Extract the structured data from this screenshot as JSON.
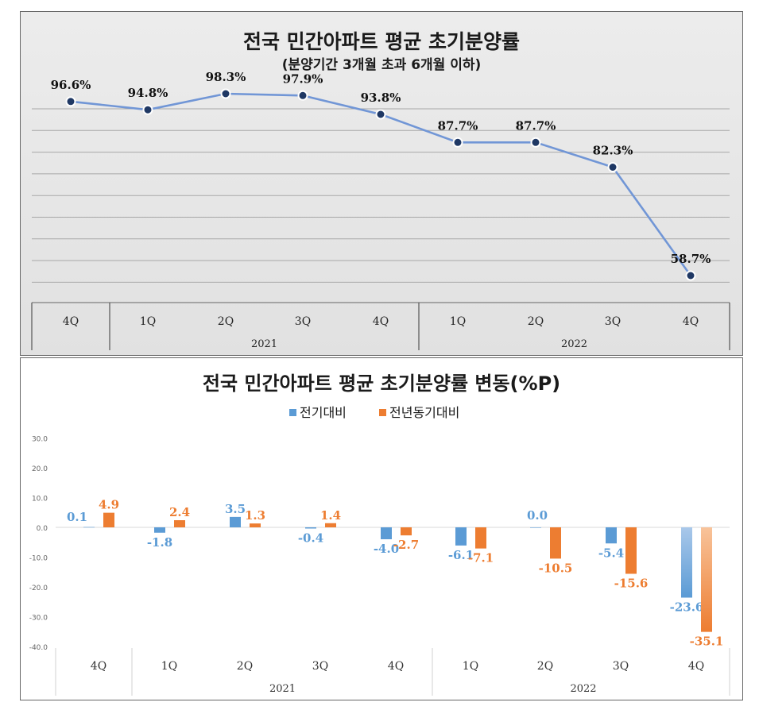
{
  "chart_data": [
    {
      "type": "line",
      "title": "전국 민간아파트 평균 초기분양률",
      "subtitle": "(분양기간 3개월 초과 6개월 이하)",
      "categories": [
        "4Q",
        "1Q",
        "2Q",
        "3Q",
        "4Q",
        "1Q",
        "2Q",
        "3Q",
        "4Q"
      ],
      "year_groups": [
        {
          "label": "2021",
          "start": 1,
          "end": 4
        },
        {
          "label": "2022",
          "start": 5,
          "end": 8
        }
      ],
      "values": [
        96.6,
        94.8,
        98.3,
        97.9,
        93.8,
        87.7,
        87.7,
        82.3,
        58.7
      ],
      "value_labels": [
        "96.6%",
        "94.8%",
        "98.3%",
        "97.9%",
        "93.8%",
        "87.7%",
        "87.7%",
        "82.3%",
        "58.7%"
      ],
      "ylim": [
        54,
        102
      ],
      "colors": {
        "line": "#7196d6",
        "marker": "#1f3864",
        "grid": "#a8a8a8"
      }
    },
    {
      "type": "bar",
      "title": "전국 민간아파트 평균 초기분양률 변동(%P)",
      "categories": [
        "4Q",
        "1Q",
        "2Q",
        "3Q",
        "4Q",
        "1Q",
        "2Q",
        "3Q",
        "4Q"
      ],
      "year_groups": [
        {
          "label": "2021",
          "start": 1,
          "end": 4
        },
        {
          "label": "2022",
          "start": 5,
          "end": 8
        }
      ],
      "series": [
        {
          "name": "전기대비",
          "color": "#5b9bd5",
          "values": [
            0.1,
            -1.8,
            3.5,
            -0.4,
            -4.0,
            -6.1,
            0.0,
            -5.4,
            -23.6
          ],
          "labels": [
            "0.1",
            "-1.8",
            "3.5",
            "-0.4",
            "-4.0",
            "-6.1",
            "0.0",
            "-5.4",
            "-23.6"
          ]
        },
        {
          "name": "전년동기대비",
          "color": "#ed7d31",
          "values": [
            4.9,
            2.4,
            1.3,
            1.4,
            -2.7,
            -7.1,
            -10.5,
            -15.6,
            -35.1
          ],
          "labels": [
            "4.9",
            "2.4",
            "1.3",
            "1.4",
            "-2.7",
            "-7.1",
            "-10.5",
            "-15.6",
            "-35.1"
          ]
        }
      ],
      "yticks": [
        "30.0",
        "20.0",
        "10.0",
        "0.0",
        "-10.0",
        "-20.0",
        "-30.0",
        "-40.0"
      ],
      "ylim": [
        -40,
        30
      ]
    }
  ]
}
